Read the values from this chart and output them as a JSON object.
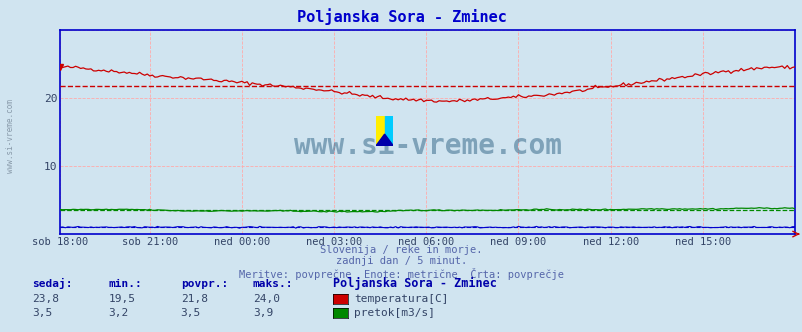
{
  "title": "Poljanska Sora - Zminec",
  "title_color": "#0000cc",
  "bg_color": "#d0e4f0",
  "plot_bg_color": "#d0e4f0",
  "x_labels": [
    "sob 18:00",
    "sob 21:00",
    "ned 00:00",
    "ned 03:00",
    "ned 06:00",
    "ned 09:00",
    "ned 12:00",
    "ned 15:00"
  ],
  "x_ticks_norm": [
    0.0,
    0.125,
    0.25,
    0.375,
    0.5,
    0.625,
    0.75,
    0.875
  ],
  "n_points": 288,
  "ylim": [
    0,
    30
  ],
  "yticks": [
    10,
    20
  ],
  "temp_color": "#cc0000",
  "flow_color": "#008800",
  "blue_color": "#0000cc",
  "avg_temp": 21.8,
  "avg_flow": 3.5,
  "avg_blue": 1.0,
  "grid_color": "#ffaaaa",
  "watermark": "www.si-vreme.com",
  "watermark_color": "#1a5276",
  "left_label": "www.si-vreme.com",
  "footer_line1": "Slovenija / reke in morje.",
  "footer_line2": "zadnji dan / 5 minut.",
  "footer_line3": "Meritve: povprečne  Enote: metrične  Črta: povprečje",
  "footer_color": "#5566aa",
  "stat_labels": [
    "sedaj:",
    "min.:",
    "povpr.:",
    "maks.:"
  ],
  "stat_label_color": "#0000aa",
  "stat_value_color": "#334466",
  "temp_vals": [
    "23,8",
    "19,5",
    "21,8",
    "24,0"
  ],
  "flow_vals": [
    "3,5",
    "3,2",
    "3,5",
    "3,9"
  ],
  "legend_title": "Poljanska Sora - Zminec",
  "legend_title_color": "#0000aa",
  "temp_label": "temperatura[C]",
  "flow_label": "pretok[m3/s]"
}
